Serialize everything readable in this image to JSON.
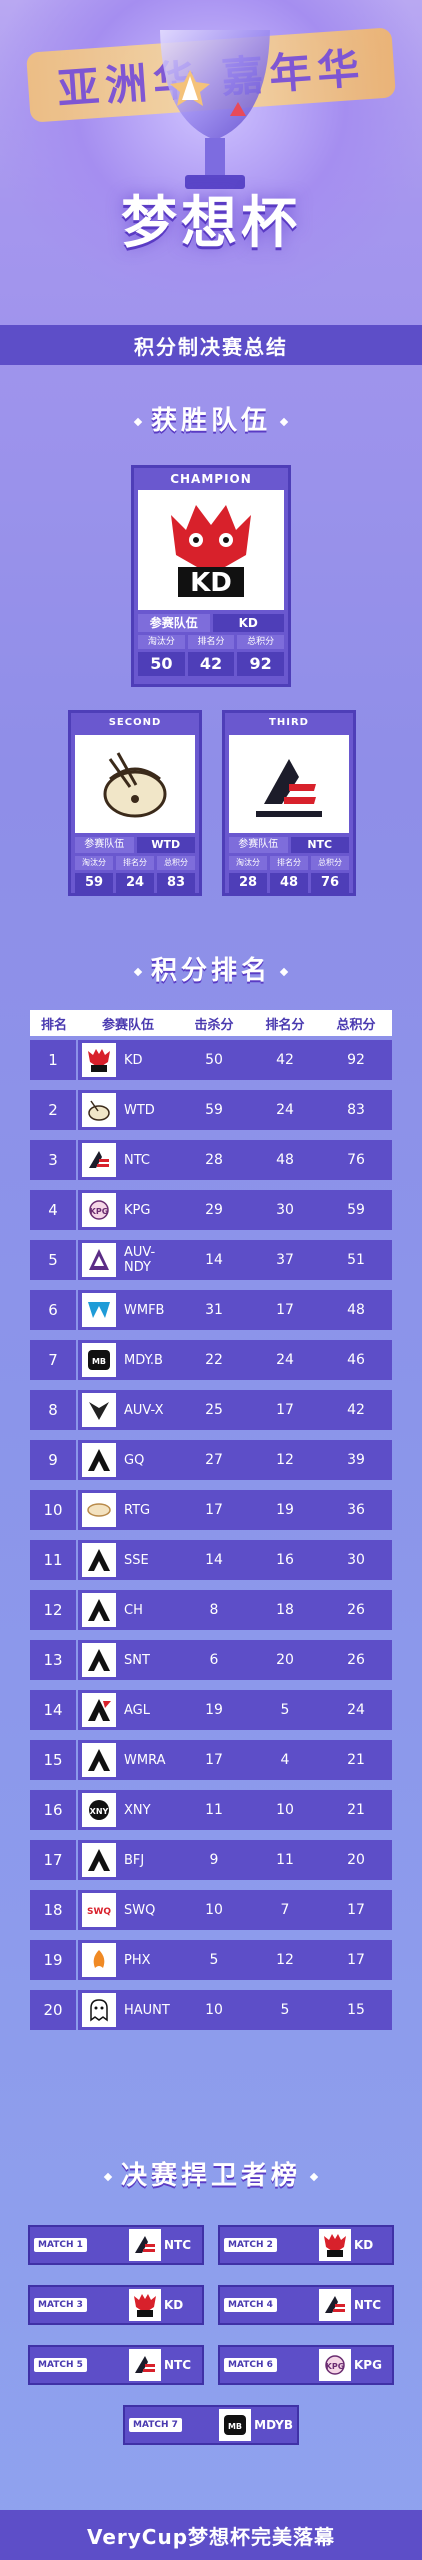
{
  "header": {
    "banner_text": "亚洲华 嘉年华",
    "title": "梦想杯",
    "subtitle": "积分制决赛总结"
  },
  "winners": {
    "section_title": "获胜队伍",
    "stat_labels": [
      "淘汰分",
      "排名分",
      "总积分"
    ],
    "team_label": "参赛队伍",
    "champion": {
      "label": "CHAMPION",
      "team": "KD",
      "kills": "50",
      "rank": "42",
      "total": "92"
    },
    "second": {
      "label": "SECOND",
      "team": "WTD",
      "kills": "59",
      "rank": "24",
      "total": "83"
    },
    "third": {
      "label": "THIRD",
      "team": "NTC",
      "kills": "28",
      "rank": "48",
      "total": "76"
    }
  },
  "ranking": {
    "section_title": "积分排名",
    "headers": [
      "排名",
      "参赛队伍",
      "击杀分",
      "排名分",
      "总积分"
    ],
    "rows": [
      {
        "rank": "1",
        "team": "KD",
        "kills": "50",
        "place": "42",
        "total": "92"
      },
      {
        "rank": "2",
        "team": "WTD",
        "kills": "59",
        "place": "24",
        "total": "83"
      },
      {
        "rank": "3",
        "team": "NTC",
        "kills": "28",
        "place": "48",
        "total": "76"
      },
      {
        "rank": "4",
        "team": "KPG",
        "kills": "29",
        "place": "30",
        "total": "59"
      },
      {
        "rank": "5",
        "team": "AUV-NDY",
        "kills": "14",
        "place": "37",
        "total": "51"
      },
      {
        "rank": "6",
        "team": "WMFB",
        "kills": "31",
        "place": "17",
        "total": "48"
      },
      {
        "rank": "7",
        "team": "MDY.B",
        "kills": "22",
        "place": "24",
        "total": "46"
      },
      {
        "rank": "8",
        "team": "AUV-X",
        "kills": "25",
        "place": "17",
        "total": "42"
      },
      {
        "rank": "9",
        "team": "GQ",
        "kills": "27",
        "place": "12",
        "total": "39"
      },
      {
        "rank": "10",
        "team": "RTG",
        "kills": "17",
        "place": "19",
        "total": "36"
      },
      {
        "rank": "11",
        "team": "SSE",
        "kills": "14",
        "place": "16",
        "total": "30"
      },
      {
        "rank": "12",
        "team": "CH",
        "kills": "8",
        "place": "18",
        "total": "26"
      },
      {
        "rank": "13",
        "team": "SNT",
        "kills": "6",
        "place": "20",
        "total": "26"
      },
      {
        "rank": "14",
        "team": "AGL",
        "kills": "19",
        "place": "5",
        "total": "24"
      },
      {
        "rank": "15",
        "team": "WMRA",
        "kills": "17",
        "place": "4",
        "total": "21"
      },
      {
        "rank": "16",
        "team": "XNY",
        "kills": "11",
        "place": "10",
        "total": "21"
      },
      {
        "rank": "17",
        "team": "BFJ",
        "kills": "9",
        "place": "11",
        "total": "20"
      },
      {
        "rank": "18",
        "team": "SWQ",
        "kills": "10",
        "place": "7",
        "total": "17"
      },
      {
        "rank": "19",
        "team": "PHX",
        "kills": "5",
        "place": "12",
        "total": "17"
      },
      {
        "rank": "20",
        "team": "HAUNT",
        "kills": "10",
        "place": "5",
        "total": "15"
      }
    ]
  },
  "mvp": {
    "section_title": "决赛捍卫者榜",
    "matches": [
      {
        "label": "MATCH 1",
        "team": "NTC"
      },
      {
        "label": "MATCH 2",
        "team": "KD"
      },
      {
        "label": "MATCH 3",
        "team": "KD"
      },
      {
        "label": "MATCH 4",
        "team": "NTC"
      },
      {
        "label": "MATCH 5",
        "team": "NTC"
      },
      {
        "label": "MATCH 6",
        "team": "KPG"
      },
      {
        "label": "MATCH 7",
        "team": "MDYB"
      }
    ]
  },
  "footer": {
    "text": "VeryCup梦想杯完美落幕"
  },
  "colors": {
    "primary": "#5d4ec8",
    "dark": "#4e3eb8",
    "accent_gold": "#f4c27a",
    "kd_red": "#d8212b"
  },
  "icons": [
    "trophy-cup-icon",
    "apex-logo-icon"
  ]
}
